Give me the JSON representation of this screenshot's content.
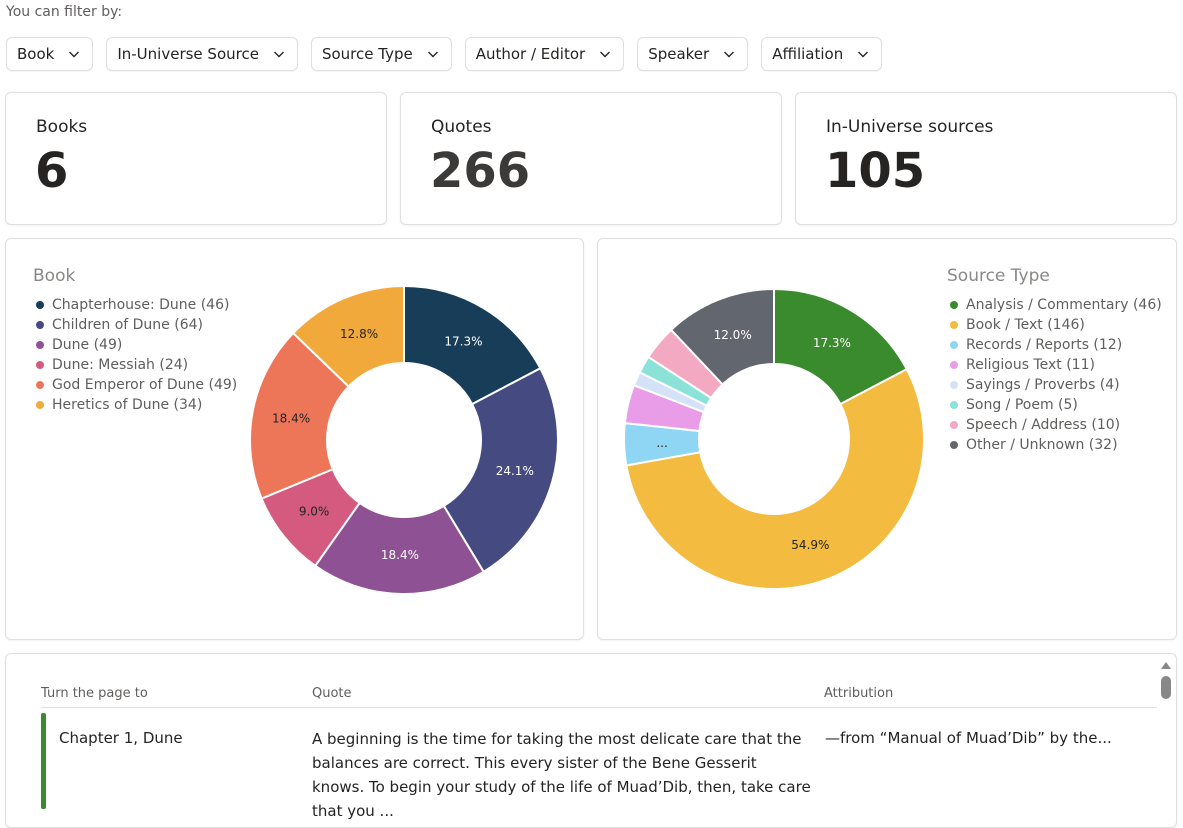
{
  "filter_caption": "You can filter by:",
  "filters": [
    "Book",
    "In-Universe Source",
    "Source Type",
    "Author / Editor",
    "Speaker",
    "Affiliation"
  ],
  "kpis": [
    {
      "title": "Books",
      "value": "6"
    },
    {
      "title": "Quotes",
      "value": "266"
    },
    {
      "title": "In-Universe sources",
      "value": "105"
    }
  ],
  "colors": {
    "book": [
      "#173d59",
      "#454b81",
      "#8e5193",
      "#d45a80",
      "#ee7658",
      "#f2a93b"
    ],
    "source": [
      "#3a8a2e",
      "#f3bb3f",
      "#8fd6f5",
      "#e99de8",
      "#d4e2f7",
      "#8be2d8",
      "#f2a9c1",
      "#62666e"
    ]
  },
  "chart_data": [
    {
      "type": "pie",
      "title": "Book",
      "categories": [
        "Chapterhouse: Dune",
        "Children of Dune",
        "Dune",
        "Dune: Messiah",
        "God Emperor of Dune",
        "Heretics of Dune"
      ],
      "legend": [
        "Chapterhouse: Dune (46)",
        "Children of Dune (64)",
        "Dune (49)",
        "Dune: Messiah (24)",
        "God Emperor of Dune (49)",
        "Heretics of Dune (34)"
      ],
      "values": [
        46,
        64,
        49,
        24,
        49,
        34
      ],
      "labels": [
        "17.3%",
        "24.1%",
        "18.4%",
        "9.0%",
        "18.4%",
        "12.8%"
      ],
      "legend_position": "top-left"
    },
    {
      "type": "pie",
      "title": "Source Type",
      "categories": [
        "Analysis / Commentary",
        "Book / Text",
        "Records / Reports",
        "Religious Text",
        "Sayings / Proverbs",
        "Song / Poem",
        "Speech / Address",
        "Other / Unknown"
      ],
      "legend": [
        "Analysis / Commentary (46)",
        "Book / Text (146)",
        "Records / Reports (12)",
        "Religious Text (11)",
        "Sayings / Proverbs (4)",
        "Song / Poem (5)",
        "Speech / Address (10)",
        "Other / Unknown (32)"
      ],
      "values": [
        46,
        146,
        12,
        11,
        4,
        5,
        10,
        32
      ],
      "labels": [
        "17.3%",
        "54.9%",
        "...",
        "",
        "",
        "",
        "",
        "12.0%"
      ],
      "legend_position": "top-right"
    }
  ],
  "table": {
    "headers": {
      "page": "Turn the page to",
      "quote": "Quote",
      "attribution": "Attribution"
    },
    "rows": [
      {
        "chapter": "Chapter 1, Dune",
        "quote": "A beginning is the time for taking the most delicate care that the balances are correct. This every sister of the Bene Gesserit knows. To begin your study of the life of Muad’Dib, then, take care that you ...",
        "attribution": "—from “Manual of Muad’Dib” by the..."
      }
    ]
  }
}
